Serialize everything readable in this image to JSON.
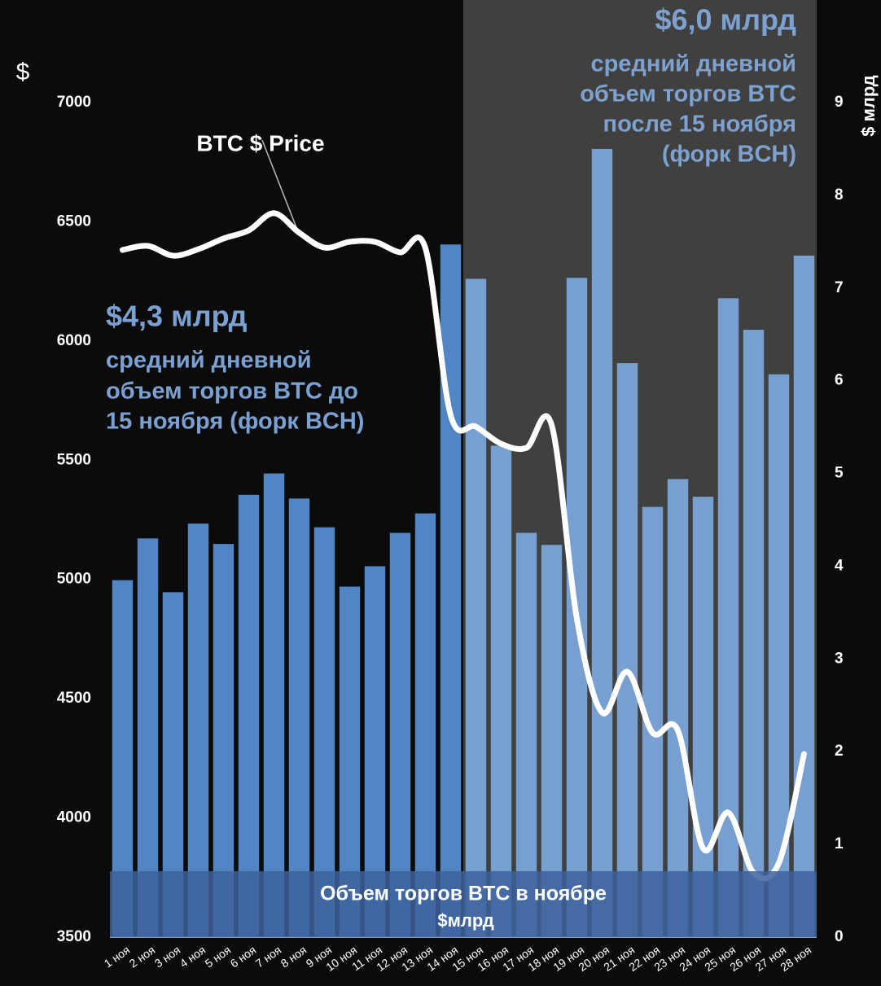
{
  "chart_data": {
    "type": "bar",
    "ylabel": "$",
    "y2label": "$ млрд",
    "categories": [
      "1 ноя",
      "2 ноя",
      "3 ноя",
      "4 ноя",
      "5 ноя",
      "6 ноя",
      "7 ноя",
      "8 ноя",
      "9 ноя",
      "10 ноя",
      "11 ноя",
      "12 ноя",
      "13 ноя",
      "14 ноя",
      "15 ноя",
      "16 ноя",
      "17 ноя",
      "18 ноя",
      "19 ноя",
      "20 ноя",
      "21 ноя",
      "22 ноя",
      "23 ноя",
      "24 ноя",
      "25 ноя",
      "26 ноя",
      "27 ноя",
      "28 ноя"
    ],
    "series": [
      {
        "type": "bar",
        "axis": "y2",
        "color": "#4a7fc0",
        "values": [
          3.85,
          4.3,
          3.72,
          4.46,
          4.24,
          4.77,
          5.0,
          4.73,
          4.42,
          3.78,
          4.0,
          4.36,
          4.57,
          7.47,
          7.1,
          5.3,
          4.36,
          4.23,
          7.11,
          8.5,
          6.19,
          4.64,
          4.94,
          4.75,
          6.89,
          6.55,
          6.07,
          7.35
        ]
      },
      {
        "type": "line",
        "axis": "y",
        "color": "#ffffff",
        "values": [
          6382,
          6399,
          6358,
          6385,
          6430,
          6464,
          6536,
          6454,
          6392,
          6416,
          6416,
          6372,
          6389,
          5689,
          5641,
          5569,
          5552,
          5648,
          4835,
          4442,
          4613,
          4357,
          4367,
          3872,
          4022,
          3770,
          3811,
          4268
        ]
      }
    ],
    "ylim": [
      3500,
      7000
    ],
    "yticks": [
      3500,
      4000,
      4500,
      5000,
      5500,
      6000,
      6500,
      7000
    ],
    "y2lim": [
      0,
      9
    ],
    "y2ticks": [
      0,
      1,
      2,
      3,
      4,
      5,
      6,
      7,
      8,
      9
    ],
    "annotations": {
      "price_label": "BTC $ Price",
      "before_value": "$4,3 млрд",
      "before_text": [
        "средний дневной",
        "объем торгов BTC до",
        "15 ноября (форк BCH)"
      ],
      "after_value": "$6,0 млрд",
      "after_text": [
        "средний дневной",
        "объем торгов BTC",
        "после 15 ноября",
        "(форк BCH)"
      ],
      "volume_title": "Объем торгов BTC в ноябре",
      "volume_unit": "$млрд"
    }
  }
}
